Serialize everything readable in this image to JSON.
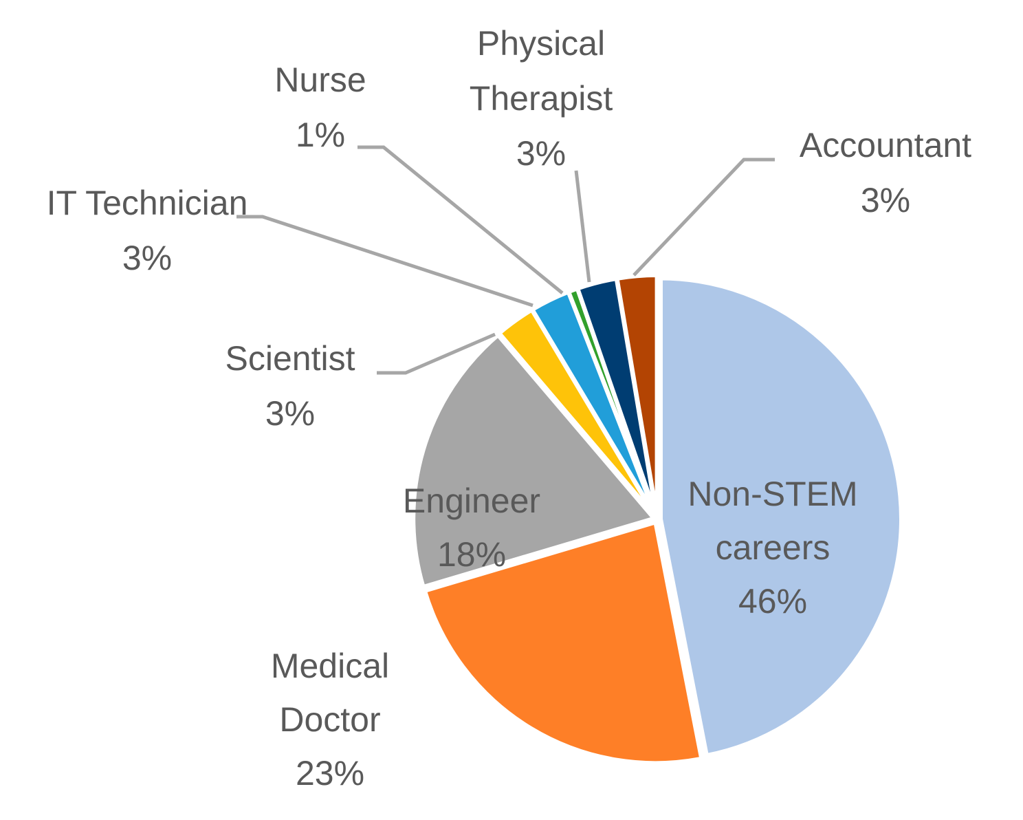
{
  "chart_data": {
    "type": "pie",
    "slices": [
      {
        "label": "Non-STEM careers",
        "value": 46,
        "value_label": "46%",
        "color": "#aec7e8"
      },
      {
        "label": "Medical Doctor",
        "value": 23,
        "value_label": "23%",
        "color": "#fe7f27"
      },
      {
        "label": "Engineer",
        "value": 18,
        "value_label": "18%",
        "color": "#a6a6a6"
      },
      {
        "label": "Scientist",
        "value": 2.6,
        "value_label": "3%",
        "color": "#fec309"
      },
      {
        "label": "IT Technician",
        "value": 2.6,
        "value_label": "3%",
        "color": "#219ed9"
      },
      {
        "label": "Nurse",
        "value": 0.6,
        "value_label": "1%",
        "color": "#32a02c"
      },
      {
        "label": "Physical Therapist",
        "value": 2.6,
        "value_label": "3%",
        "color": "#003d72"
      },
      {
        "label": "Accountant",
        "value": 2.6,
        "value_label": "3%",
        "color": "#b34403"
      }
    ],
    "start_angle_deg": 0,
    "direction": "clockwise"
  }
}
